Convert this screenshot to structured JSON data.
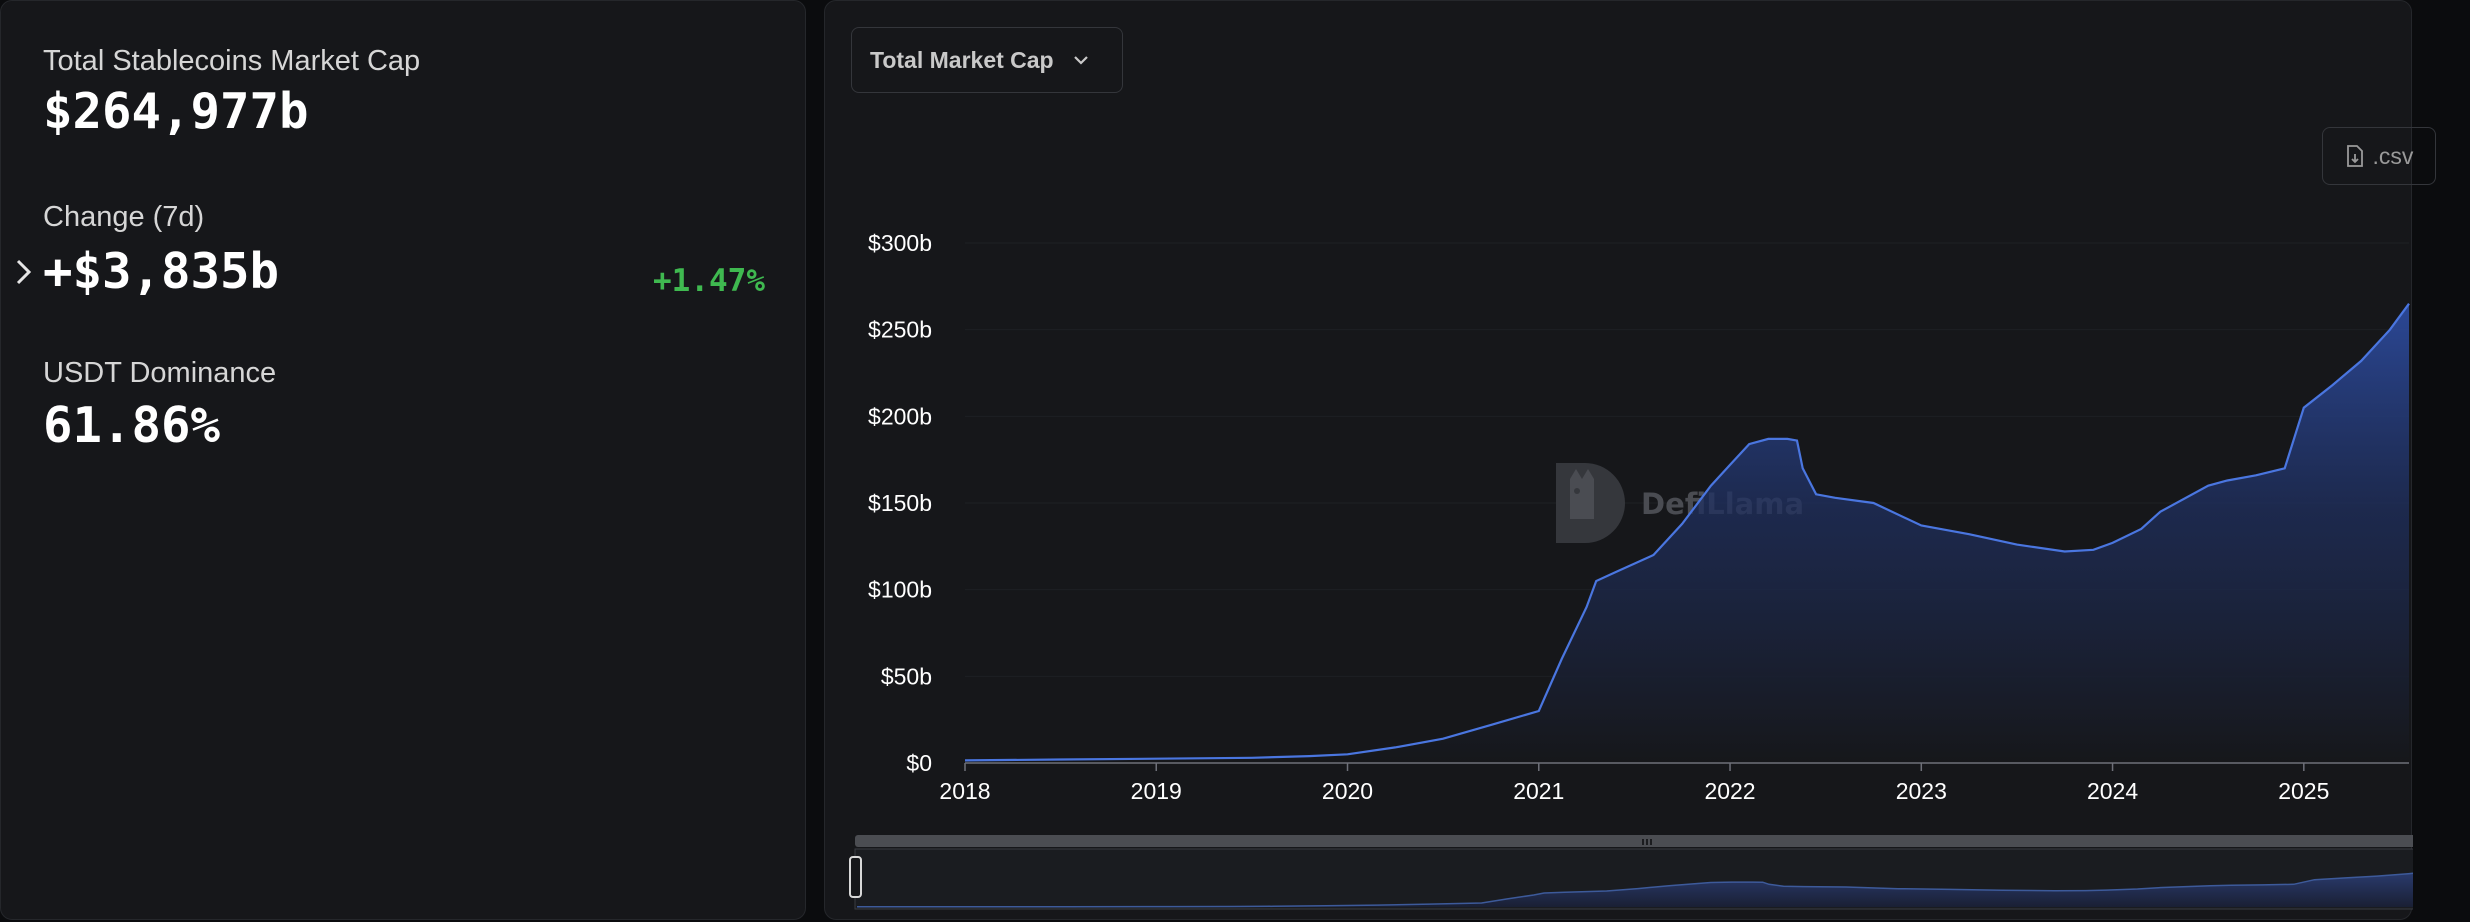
{
  "stats": {
    "total_label": "Total Stablecoins Market Cap",
    "total_value": "$264,977b",
    "change_label": "Change (7d)",
    "change_value": "+$3,835b",
    "change_pct": "+1.47%",
    "dominance_label": "USDT Dominance",
    "dominance_value": "61.86%"
  },
  "toolbar": {
    "dropdown_label": "Total Market Cap",
    "csv_label": ".csv"
  },
  "watermark": {
    "text": "DefiLlama"
  },
  "colors": {
    "accent": "#4a76e0",
    "positive": "#3fb950",
    "panel": "#16171a"
  },
  "icons": [
    "chevron-right-icon",
    "chevron-down-icon",
    "download-file-icon",
    "defillama-logo-icon"
  ],
  "chart_data": {
    "type": "area",
    "title": "",
    "xlabel": "",
    "ylabel": "",
    "y_tick_labels": [
      "$0",
      "$50b",
      "$100b",
      "$150b",
      "$200b",
      "$250b",
      "$300b"
    ],
    "x_tick_labels": [
      "2018",
      "2019",
      "2020",
      "2021",
      "2022",
      "2023",
      "2024",
      "2025"
    ],
    "ylim": [
      0,
      300
    ],
    "xlim": [
      2018.0,
      2025.55
    ],
    "grid": true,
    "series": [
      {
        "values_unit": "billions USD",
        "x": [
          2018.0,
          2018.5,
          2019.0,
          2019.5,
          2019.8,
          2020.0,
          2020.25,
          2020.5,
          2020.75,
          2021.0,
          2021.12,
          2021.25,
          2021.3,
          2021.4,
          2021.6,
          2021.75,
          2021.9,
          2022.0,
          2022.1,
          2022.2,
          2022.3,
          2022.35,
          2022.38,
          2022.45,
          2022.55,
          2022.75,
          2023.0,
          2023.25,
          2023.5,
          2023.75,
          2023.9,
          2024.0,
          2024.15,
          2024.25,
          2024.5,
          2024.6,
          2024.75,
          2024.9,
          2025.0,
          2025.15,
          2025.3,
          2025.45,
          2025.55
        ],
        "y": [
          1.5,
          2,
          2.5,
          3,
          4,
          5,
          9,
          14,
          22,
          30,
          60,
          90,
          105,
          110,
          120,
          138,
          160,
          172,
          184,
          187,
          187,
          186,
          170,
          155,
          153,
          150,
          137,
          132,
          126,
          122,
          123,
          127,
          135,
          145,
          160,
          163,
          166,
          170,
          205,
          218,
          232,
          250,
          265
        ]
      }
    ]
  }
}
